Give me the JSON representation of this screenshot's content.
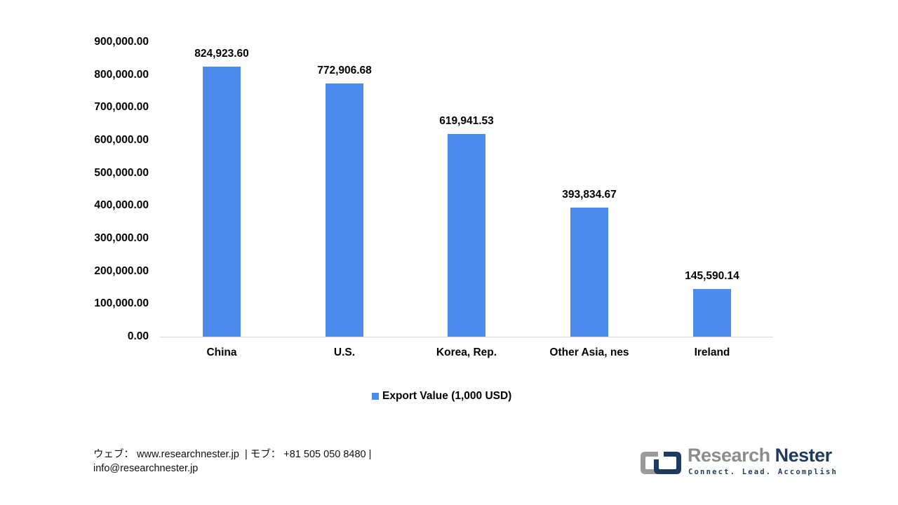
{
  "chart_data": {
    "type": "bar",
    "title": "",
    "xlabel": "",
    "ylabel": "",
    "categories": [
      "China",
      "U.S.",
      "Korea, Rep.",
      "Other Asia, nes",
      "Ireland"
    ],
    "series": [
      {
        "name": "Export Value (1,000 USD)",
        "color": "#4a8bec",
        "values": [
          824923.6,
          772906.68,
          619941.53,
          393834.67,
          145590.14
        ]
      }
    ],
    "value_labels": [
      "824,923.60",
      "772,906.68",
      "619,941.53",
      "393,834.67",
      "145,590.14"
    ],
    "ylim": [
      0,
      900000
    ],
    "yticks": [
      "900,000.00",
      "800,000.00",
      "700,000.00",
      "600,000.00",
      "500,000.00",
      "400,000.00",
      "300,000.00",
      "200,000.00",
      "100,000.00",
      "0.00"
    ],
    "grid": false,
    "legend_position": "bottom"
  },
  "legend": {
    "label": "Export Value (1,000 USD)"
  },
  "footer": {
    "line1": "ウェブ： www.researchnester.jp  | モブ： +81 505 050 8480 |",
    "line2": "info@researchnester.jp"
  },
  "logo": {
    "word1": "Research",
    "word2": "Nester",
    "tagline": "Connect. Lead. Accomplish"
  }
}
